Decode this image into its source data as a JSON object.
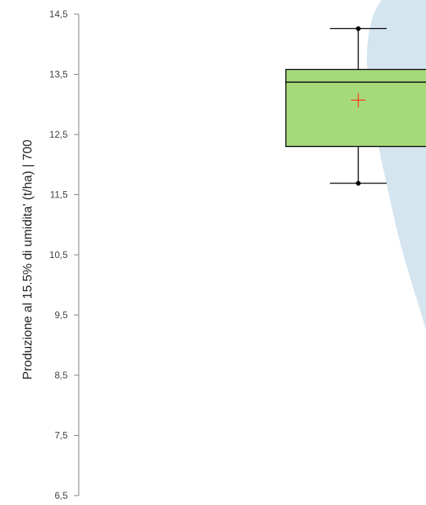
{
  "chart_data": {
    "type": "box",
    "ylabel": "Produzione al 15.5% di umidita' (t/ha) | 700",
    "ylim": [
      6.5,
      14.5
    ],
    "yticks": [
      "6,5",
      "7,5",
      "8,5",
      "9,5",
      "10,5",
      "11,5",
      "12,5",
      "13,5",
      "14,5"
    ],
    "grid": false,
    "box": {
      "whisker_low": 11.69,
      "q1": 12.3,
      "median": 13.37,
      "q3": 13.58,
      "whisker_high": 14.26,
      "mean": 13.07
    },
    "colors": {
      "box_fill": "#a6d97a",
      "box_stroke": "#000000",
      "mean_marker": "#ff3b1f",
      "axis": "#808080",
      "violin_background": "#d5e5f0"
    }
  }
}
